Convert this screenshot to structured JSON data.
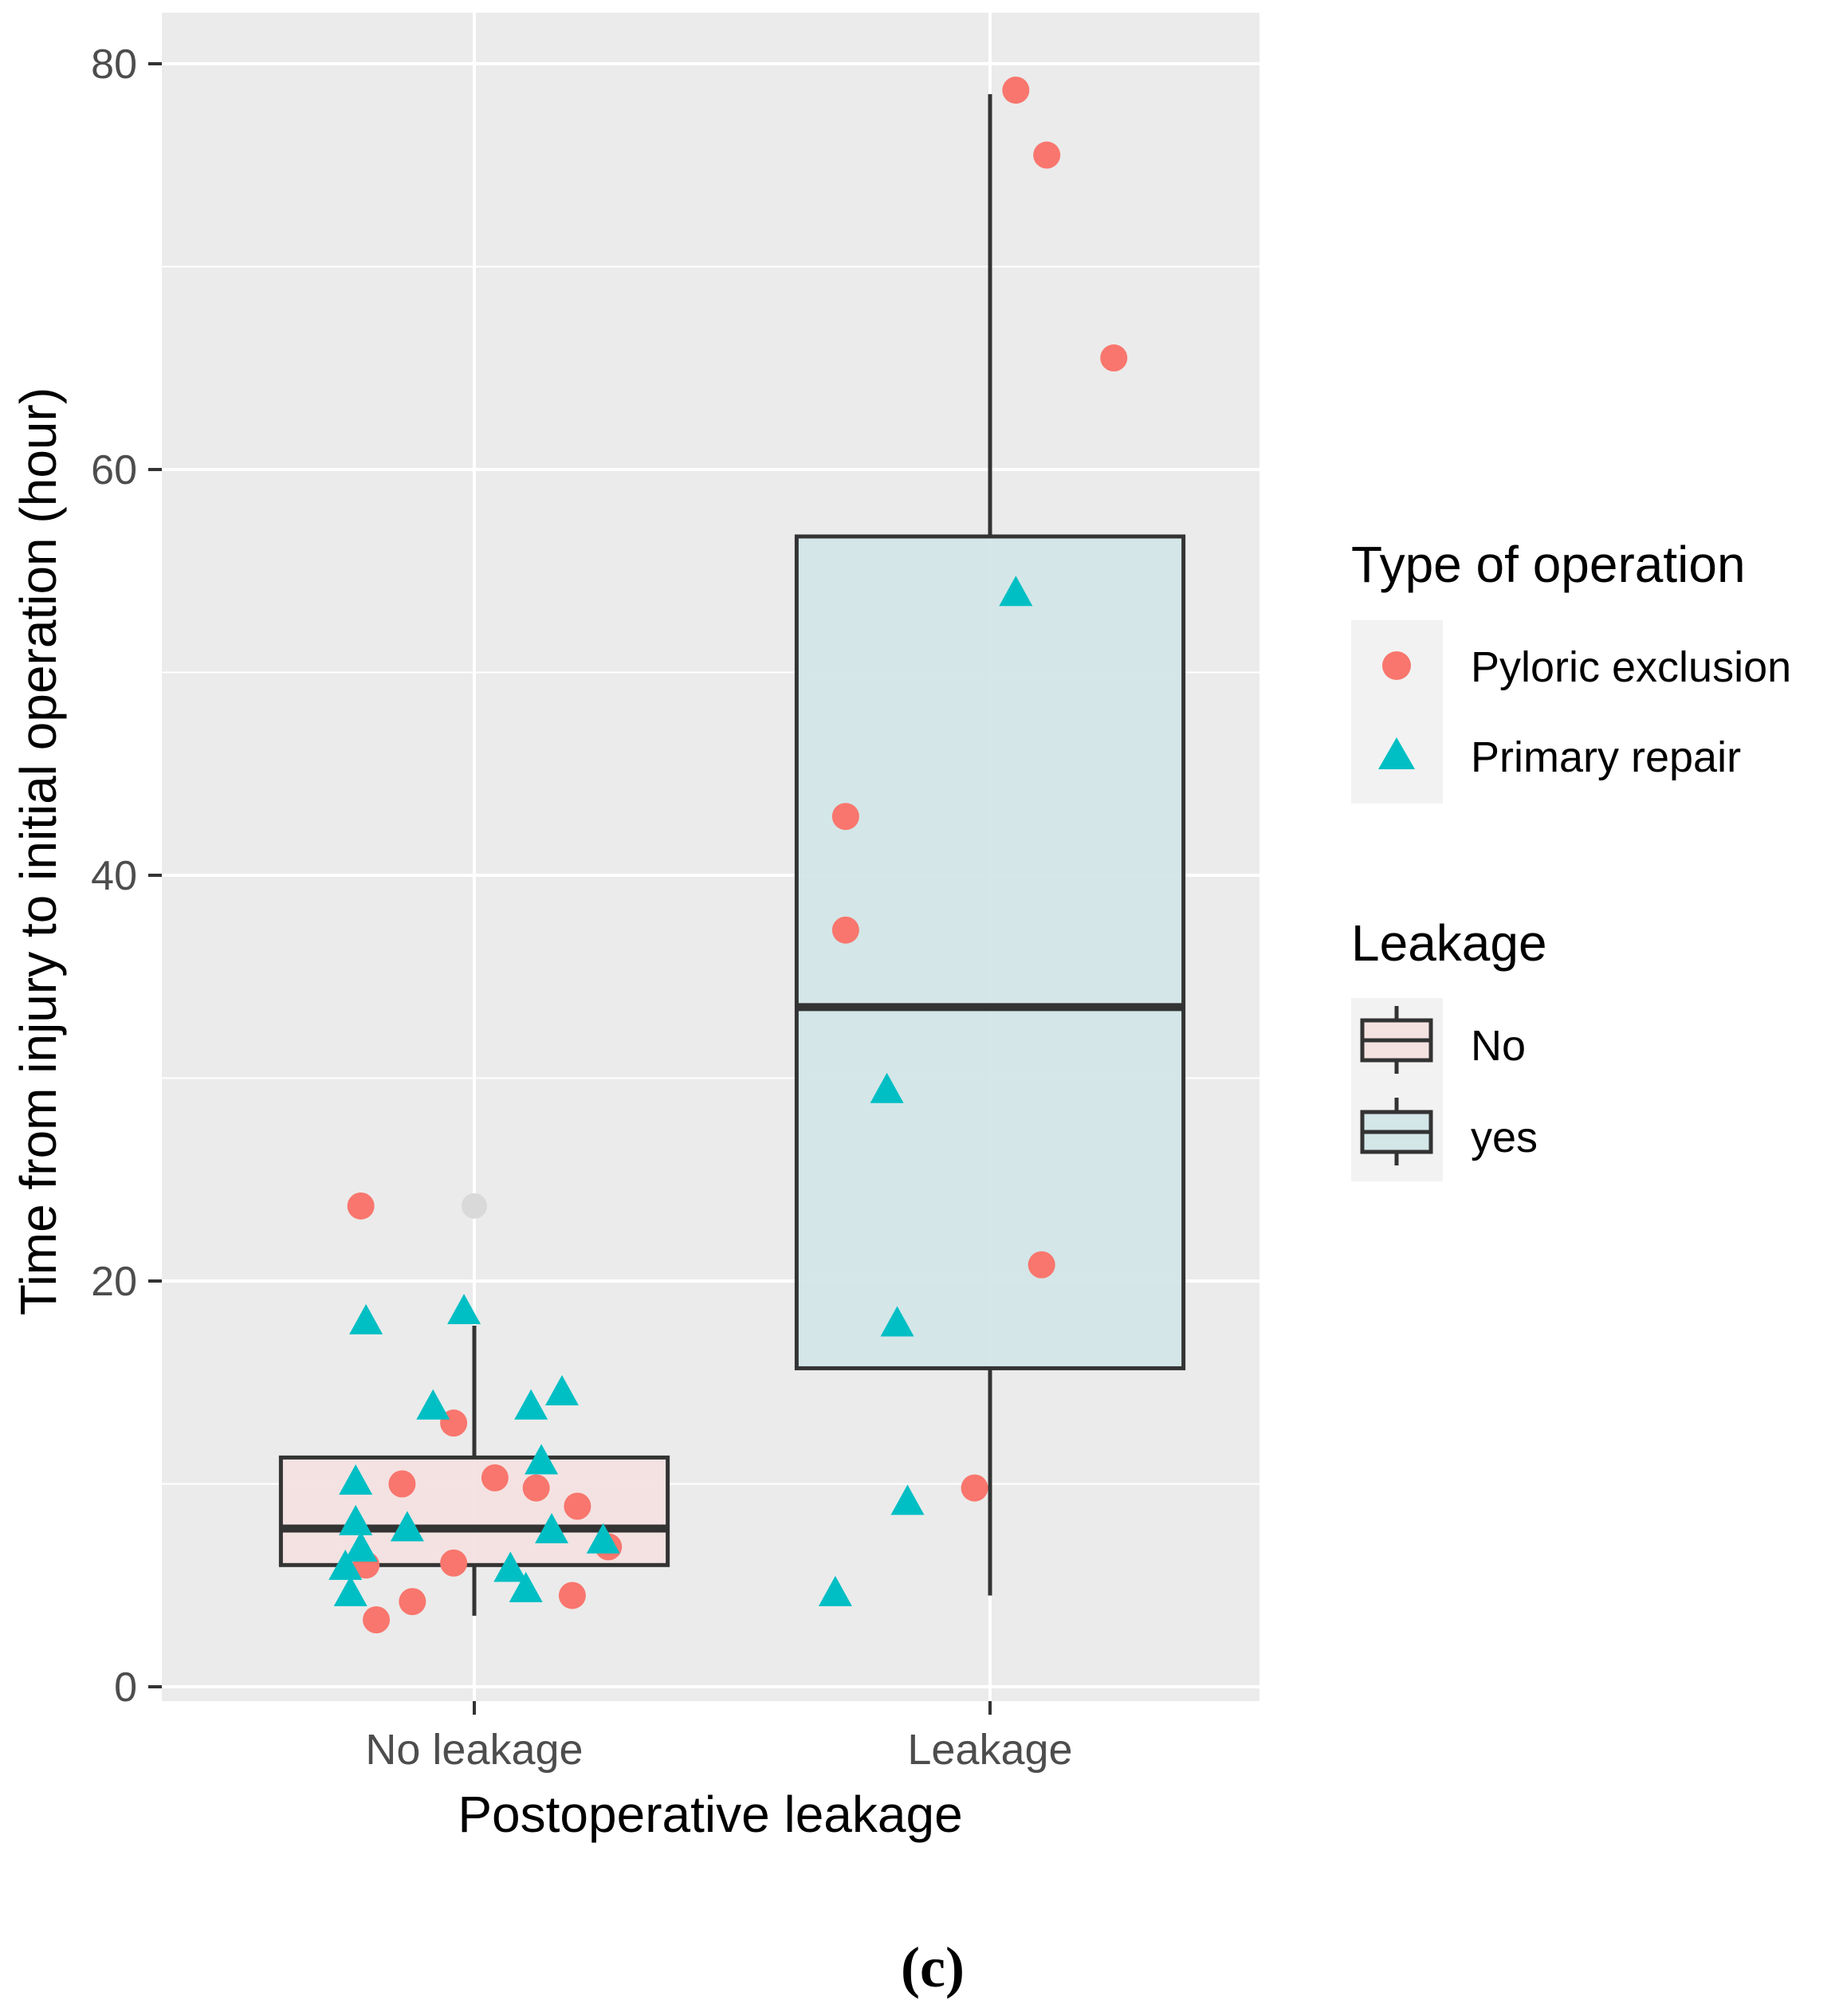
{
  "chart_data": {
    "type": "boxplot",
    "title": "",
    "xlabel": "Postoperative leakage",
    "ylabel": "Time from injury to initial operation (hour)",
    "ylim": [
      0,
      82
    ],
    "yticks": [
      0,
      20,
      40,
      60,
      80
    ],
    "categories": [
      "No leakage",
      "Leakage"
    ],
    "boxes": [
      {
        "category": "No leakage",
        "fill_group": "No",
        "min": 3.5,
        "q1": 6.0,
        "median": 7.8,
        "q3": 11.3,
        "max": 17.8,
        "outliers": [
          23.7
        ]
      },
      {
        "category": "Leakage",
        "fill_group": "yes",
        "min": 4.5,
        "q1": 15.7,
        "median": 33.5,
        "q3": 56.7,
        "max": 78.5,
        "outliers": []
      }
    ],
    "series": [
      {
        "name": "Pyloric exclusion",
        "shape": "circle",
        "color": "#F8766D",
        "points": [
          {
            "category": "No leakage",
            "offset": -0.22,
            "y": 23.7
          },
          {
            "category": "No leakage",
            "offset": -0.14,
            "y": 10.0
          },
          {
            "category": "No leakage",
            "offset": -0.04,
            "y": 13.0
          },
          {
            "category": "No leakage",
            "offset": 0.04,
            "y": 10.3
          },
          {
            "category": "No leakage",
            "offset": 0.12,
            "y": 9.8
          },
          {
            "category": "No leakage",
            "offset": 0.2,
            "y": 8.9
          },
          {
            "category": "No leakage",
            "offset": 0.26,
            "y": 6.9
          },
          {
            "category": "No leakage",
            "offset": -0.04,
            "y": 6.1
          },
          {
            "category": "No leakage",
            "offset": -0.21,
            "y": 6.0
          },
          {
            "category": "No leakage",
            "offset": -0.12,
            "y": 4.2
          },
          {
            "category": "No leakage",
            "offset": 0.19,
            "y": 4.5
          },
          {
            "category": "No leakage",
            "offset": -0.19,
            "y": 3.3
          },
          {
            "category": "Leakage",
            "offset": 0.05,
            "y": 78.7
          },
          {
            "category": "Leakage",
            "offset": 0.11,
            "y": 75.5
          },
          {
            "category": "Leakage",
            "offset": 0.24,
            "y": 65.5
          },
          {
            "category": "Leakage",
            "offset": -0.28,
            "y": 42.9
          },
          {
            "category": "Leakage",
            "offset": -0.28,
            "y": 37.3
          },
          {
            "category": "Leakage",
            "offset": 0.1,
            "y": 20.8
          },
          {
            "category": "Leakage",
            "offset": -0.03,
            "y": 9.8
          }
        ]
      },
      {
        "name": "Primary repair",
        "shape": "triangle",
        "color": "#00BFC4",
        "points": [
          {
            "category": "No leakage",
            "offset": -0.21,
            "y": 18.0
          },
          {
            "category": "No leakage",
            "offset": -0.02,
            "y": 18.5
          },
          {
            "category": "No leakage",
            "offset": -0.08,
            "y": 13.8
          },
          {
            "category": "No leakage",
            "offset": 0.11,
            "y": 13.8
          },
          {
            "category": "No leakage",
            "offset": 0.17,
            "y": 14.5
          },
          {
            "category": "No leakage",
            "offset": 0.13,
            "y": 11.1
          },
          {
            "category": "No leakage",
            "offset": -0.23,
            "y": 10.1
          },
          {
            "category": "No leakage",
            "offset": -0.23,
            "y": 8.1
          },
          {
            "category": "No leakage",
            "offset": -0.13,
            "y": 7.8
          },
          {
            "category": "No leakage",
            "offset": 0.15,
            "y": 7.7
          },
          {
            "category": "No leakage",
            "offset": 0.25,
            "y": 7.2
          },
          {
            "category": "No leakage",
            "offset": -0.22,
            "y": 6.8
          },
          {
            "category": "No leakage",
            "offset": -0.25,
            "y": 5.9
          },
          {
            "category": "No leakage",
            "offset": 0.07,
            "y": 5.8
          },
          {
            "category": "No leakage",
            "offset": 0.1,
            "y": 4.8
          },
          {
            "category": "No leakage",
            "offset": -0.24,
            "y": 4.6
          },
          {
            "category": "Leakage",
            "offset": 0.05,
            "y": 53.9
          },
          {
            "category": "Leakage",
            "offset": -0.2,
            "y": 29.4
          },
          {
            "category": "Leakage",
            "offset": -0.18,
            "y": 17.9
          },
          {
            "category": "Leakage",
            "offset": -0.16,
            "y": 9.1
          },
          {
            "category": "Leakage",
            "offset": -0.3,
            "y": 4.6
          }
        ]
      }
    ],
    "legend": [
      {
        "title": "Type of operation",
        "entries": [
          {
            "label": "Pyloric exclusion",
            "shape": "circle",
            "color": "#F8766D"
          },
          {
            "label": "Primary repair",
            "shape": "triangle",
            "color": "#00BFC4"
          }
        ]
      },
      {
        "title": "Leakage",
        "entries": [
          {
            "label": "No",
            "fill": "#F4E2E1"
          },
          {
            "label": "yes",
            "fill": "#D3E6E8"
          }
        ]
      }
    ],
    "legend_position": "right",
    "grid": true,
    "caption": "(c)"
  }
}
